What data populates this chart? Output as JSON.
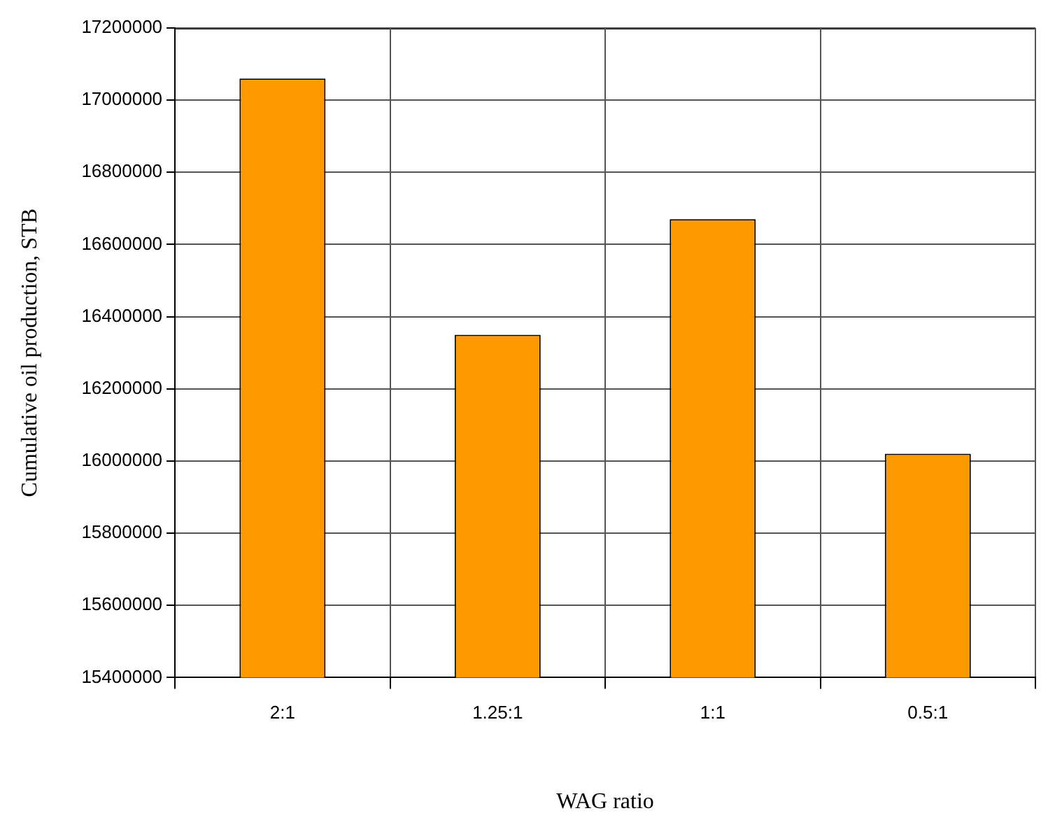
{
  "chart_data": {
    "type": "bar",
    "xlabel": "WAG ratio",
    "ylabel": "Cumulative oil production, STB",
    "categories": [
      "2:1",
      "1.25:1",
      "1:1",
      "0.5:1"
    ],
    "values": [
      17060000,
      16350000,
      16670000,
      16020000
    ],
    "color": "#ff9900",
    "ylim": [
      15400000,
      17200000
    ],
    "yticks": [
      15400000,
      15600000,
      15800000,
      16000000,
      16200000,
      16400000,
      16600000,
      16800000,
      17000000,
      17200000
    ],
    "grid": true,
    "legend": false
  }
}
